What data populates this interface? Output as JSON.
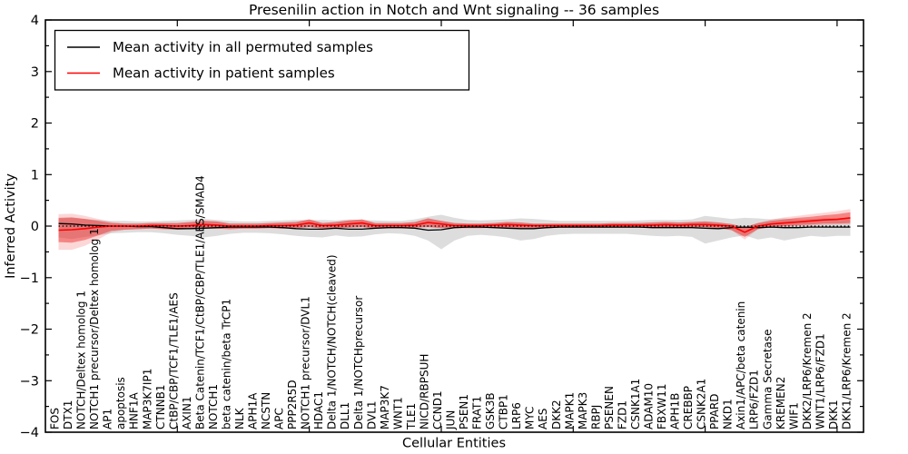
{
  "chart_data": {
    "type": "line",
    "title": "Presenilin action in Notch and Wnt signaling -- 36 samples",
    "xlabel": "Cellular Entities",
    "ylabel": "Inferred Activity",
    "ylim": [
      -4,
      4
    ],
    "y_ticks": [
      4,
      3,
      2,
      1,
      0,
      -1,
      -2,
      -3,
      -4
    ],
    "y_tick_labels": [
      "4",
      "3",
      "2",
      "1",
      "0",
      "−1",
      "−2",
      "−3",
      "−4"
    ],
    "y_minor_ticks": [
      3.5,
      2.5,
      1.5,
      0.5,
      -0.5,
      -1.5,
      -2.5,
      -3.5
    ],
    "x_major_tick_positions": [
      10,
      20,
      30,
      40,
      50,
      60
    ],
    "grid": false,
    "legend_position": "upper left",
    "zero_line": true,
    "categories": [
      "FOS",
      "DTX1",
      "NOTCH/Deltex homolog 1",
      "NOTCH1 precursor/Deltex homolog 1",
      "AP1",
      "apoptosis",
      "HNF1A",
      "MAP3K7IP1",
      "CTNNB1",
      "CtBP/CBP/TCF1/TLE1/AES",
      "AXIN1",
      "Beta Catenin/TCF1/CtBP/CBP/TLE1/AES/SMAD4",
      "NOTCH1",
      "beta catenin/beta TrCP1",
      "NLK",
      "APH1A",
      "NCSTN",
      "APC",
      "PPP2R5D",
      "NOTCH1 precursor/DVL1",
      "HDAC1",
      "Delta 1/NOTCH/NOTCH(cleaved)",
      "DLL1",
      "Delta 1/NOTCHprecursor",
      "DVL1",
      "MAP3K7",
      "WNT1",
      "TLE1",
      "NICD/RBPSUH",
      "CCND1",
      "JUN",
      "PSEN1",
      "FRAT1",
      "GSK3B",
      "CTBP1",
      "LRP6",
      "MYC",
      "AES",
      "DKK2",
      "MAPK1",
      "MAPK3",
      "RBPJ",
      "PSENEN",
      "FZD1",
      "CSNK1A1",
      "ADAM10",
      "FBXW11",
      "APH1B",
      "CREBBP",
      "CSNK2A1",
      "PPARD",
      "NKD1",
      "Axin1/APC/beta catenin",
      "LRP6/FZD1",
      "Gamma Secretase",
      "KREMEN2",
      "WIF1",
      "DKK2/LRP6/Kremen 2",
      "WNT1/LRP6/FZD1",
      "DKK1",
      "DKK1/LRP6/Kremen 2"
    ],
    "series": [
      {
        "name": "Mean activity in all permuted samples",
        "color": "#000000",
        "band_color": "#bbbbbb",
        "band_opacity": 0.5,
        "values": [
          0.05,
          0.04,
          0.02,
          0.01,
          0,
          0,
          -0.01,
          -0.01,
          -0.03,
          -0.05,
          -0.05,
          -0.04,
          -0.03,
          -0.02,
          -0.02,
          -0.02,
          -0.02,
          -0.03,
          -0.05,
          -0.06,
          -0.06,
          -0.04,
          -0.06,
          -0.06,
          -0.04,
          -0.03,
          -0.03,
          -0.04,
          -0.08,
          -0.07,
          -0.03,
          -0.02,
          -0.02,
          -0.03,
          -0.04,
          -0.05,
          -0.05,
          -0.03,
          -0.02,
          -0.02,
          -0.02,
          -0.02,
          -0.02,
          -0.02,
          -0.02,
          -0.03,
          -0.03,
          -0.03,
          -0.03,
          -0.04,
          -0.05,
          -0.03,
          -0.02,
          -0.03,
          -0.02,
          -0.03,
          -0.03,
          -0.02,
          -0.02,
          -0.02,
          -0.02
        ],
        "band_upper": [
          0.15,
          0.16,
          0.14,
          0.12,
          0.1,
          0.1,
          0.09,
          0.09,
          0.1,
          0.11,
          0.12,
          0.14,
          0.12,
          0.1,
          0.09,
          0.09,
          0.1,
          0.11,
          0.12,
          0.12,
          0.12,
          0.11,
          0.13,
          0.12,
          0.11,
          0.1,
          0.1,
          0.13,
          0.18,
          0.22,
          0.16,
          0.12,
          0.11,
          0.12,
          0.13,
          0.15,
          0.14,
          0.12,
          0.1,
          0.1,
          0.1,
          0.1,
          0.1,
          0.1,
          0.11,
          0.12,
          0.12,
          0.12,
          0.13,
          0.2,
          0.17,
          0.14,
          0.16,
          0.15,
          0.13,
          0.15,
          0.13,
          0.14,
          0.15,
          0.15,
          0.17
        ],
        "band_lower": [
          -0.22,
          -0.25,
          -0.21,
          -0.18,
          -0.14,
          -0.13,
          -0.12,
          -0.12,
          -0.14,
          -0.17,
          -0.19,
          -0.22,
          -0.19,
          -0.15,
          -0.13,
          -0.13,
          -0.14,
          -0.16,
          -0.19,
          -0.21,
          -0.22,
          -0.18,
          -0.21,
          -0.2,
          -0.16,
          -0.14,
          -0.15,
          -0.19,
          -0.28,
          -0.45,
          -0.28,
          -0.19,
          -0.17,
          -0.19,
          -0.22,
          -0.28,
          -0.25,
          -0.19,
          -0.16,
          -0.15,
          -0.15,
          -0.15,
          -0.15,
          -0.15,
          -0.17,
          -0.19,
          -0.2,
          -0.19,
          -0.21,
          -0.34,
          -0.28,
          -0.22,
          -0.18,
          -0.26,
          -0.22,
          -0.28,
          -0.23,
          -0.19,
          -0.21,
          -0.19,
          -0.19
        ]
      },
      {
        "name": "Mean activity in patient samples",
        "color": "#ff0000",
        "band_color": "#ee2222",
        "band_opacity": 0.45,
        "outer_band_opacity": 0.18,
        "values": [
          -0.08,
          -0.07,
          -0.05,
          -0.02,
          0,
          0,
          0,
          0.01,
          0.01,
          0,
          0.01,
          0.03,
          0.02,
          0,
          0,
          0,
          0.01,
          0.01,
          0.02,
          0.06,
          0.01,
          0.02,
          0.04,
          0.06,
          0.01,
          0.01,
          0.01,
          0.02,
          0.07,
          0.04,
          0.01,
          0.01,
          0.01,
          0.02,
          0.03,
          0.02,
          0.01,
          0.01,
          0.01,
          0.01,
          0.01,
          0.01,
          0.02,
          0.02,
          0.02,
          0.02,
          0.03,
          0.02,
          0.03,
          0.03,
          0.02,
          0,
          -0.12,
          0,
          0.04,
          0.06,
          0.08,
          0.1,
          0.12,
          0.13,
          0.16
        ],
        "band_upper": [
          0.16,
          0.17,
          0.14,
          0.1,
          0.06,
          0.05,
          0.05,
          0.06,
          0.06,
          0.06,
          0.08,
          0.1,
          0.09,
          0.05,
          0.05,
          0.05,
          0.06,
          0.07,
          0.08,
          0.13,
          0.06,
          0.08,
          0.11,
          0.13,
          0.06,
          0.06,
          0.06,
          0.08,
          0.15,
          0.1,
          0.06,
          0.05,
          0.05,
          0.06,
          0.08,
          0.07,
          0.05,
          0.05,
          0.05,
          0.05,
          0.05,
          0.05,
          0.06,
          0.06,
          0.06,
          0.07,
          0.08,
          0.07,
          0.08,
          0.09,
          0.07,
          0.04,
          -0.02,
          0.06,
          0.1,
          0.13,
          0.16,
          0.18,
          0.21,
          0.23,
          0.27
        ],
        "band_lower": [
          -0.31,
          -0.32,
          -0.27,
          -0.18,
          -0.09,
          -0.07,
          -0.06,
          -0.05,
          -0.06,
          -0.07,
          -0.06,
          -0.05,
          -0.05,
          -0.06,
          -0.05,
          -0.05,
          -0.04,
          -0.05,
          -0.04,
          -0.02,
          -0.05,
          -0.04,
          -0.03,
          -0.02,
          -0.05,
          -0.04,
          -0.04,
          -0.03,
          -0.02,
          -0.04,
          -0.04,
          -0.04,
          -0.04,
          -0.03,
          -0.03,
          -0.04,
          -0.04,
          -0.04,
          -0.03,
          -0.03,
          -0.03,
          -0.03,
          -0.03,
          -0.03,
          -0.03,
          -0.02,
          -0.02,
          -0.03,
          -0.02,
          -0.02,
          -0.04,
          -0.08,
          -0.21,
          -0.06,
          -0.01,
          0,
          0.02,
          0.03,
          0.05,
          0.05,
          0.06
        ],
        "outer_band_upper": [
          0.23,
          0.24,
          0.2,
          0.14,
          0.08,
          0.05,
          0.05,
          0.06,
          0.06,
          0.06,
          0.08,
          0.1,
          0.09,
          0.05,
          0.05,
          0.05,
          0.06,
          0.07,
          0.08,
          0.13,
          0.06,
          0.08,
          0.11,
          0.13,
          0.06,
          0.06,
          0.06,
          0.08,
          0.15,
          0.1,
          0.06,
          0.05,
          0.05,
          0.06,
          0.08,
          0.07,
          0.05,
          0.05,
          0.05,
          0.05,
          0.05,
          0.05,
          0.06,
          0.06,
          0.06,
          0.07,
          0.08,
          0.07,
          0.08,
          0.09,
          0.07,
          0.04,
          -0.02,
          0.06,
          0.13,
          0.17,
          0.2,
          0.23,
          0.26,
          0.29,
          0.33
        ],
        "outer_band_lower": [
          -0.46,
          -0.46,
          -0.38,
          -0.26,
          -0.12,
          -0.07,
          -0.06,
          -0.05,
          -0.06,
          -0.07,
          -0.06,
          -0.05,
          -0.05,
          -0.06,
          -0.05,
          -0.05,
          -0.04,
          -0.05,
          -0.04,
          -0.02,
          -0.05,
          -0.04,
          -0.03,
          -0.02,
          -0.05,
          -0.04,
          -0.04,
          -0.03,
          -0.02,
          -0.04,
          -0.04,
          -0.04,
          -0.04,
          -0.03,
          -0.03,
          -0.04,
          -0.04,
          -0.04,
          -0.03,
          -0.03,
          -0.03,
          -0.03,
          -0.03,
          -0.03,
          -0.03,
          -0.02,
          -0.02,
          -0.03,
          -0.02,
          -0.02,
          -0.04,
          -0.08,
          -0.26,
          -0.06,
          -0.03,
          -0.02,
          0,
          0.01,
          0.02,
          0.03,
          0.03
        ]
      }
    ]
  }
}
